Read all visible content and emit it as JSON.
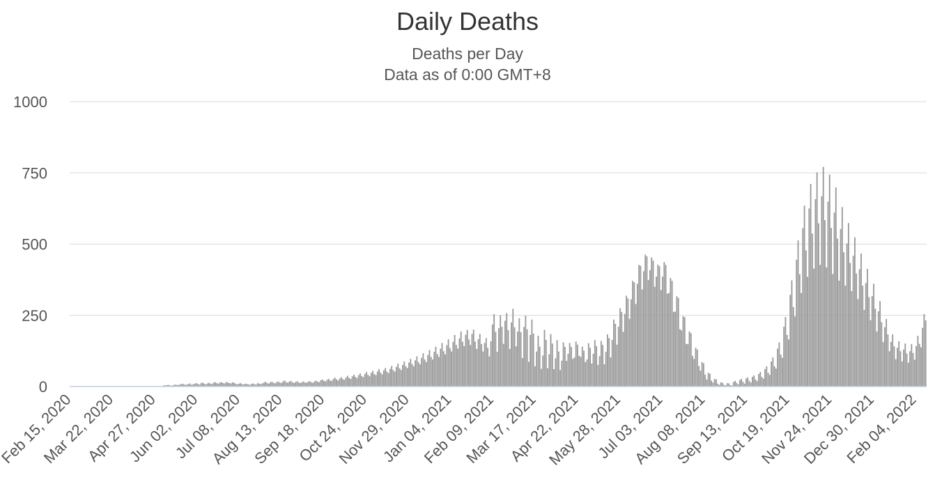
{
  "chart_data": {
    "type": "bar",
    "title": "Daily Deaths",
    "subtitle_lines": [
      "Deaths per Day",
      "Data as of 0:00 GMT+8"
    ],
    "xlabel": "",
    "ylabel": "",
    "ylim": [
      0,
      1000
    ],
    "yticks": [
      0,
      250,
      500,
      750,
      1000
    ],
    "grid": true,
    "legend": "none",
    "bar_color": "#999999",
    "x_range": [
      "2020-02-15",
      "2022-02-14"
    ],
    "xtick_labels": [
      "Feb 15, 2020",
      "Mar 22, 2020",
      "Apr 27, 2020",
      "Jun 02, 2020",
      "Jul 08, 2020",
      "Aug 13, 2020",
      "Sep 18, 2020",
      "Oct 24, 2020",
      "Nov 29, 2020",
      "Jan 04, 2021",
      "Feb 09, 2021",
      "Mar 17, 2021",
      "Apr 22, 2021",
      "May 28, 2021",
      "Jul 03, 2021",
      "Aug 08, 2021",
      "Sep 13, 2021",
      "Oct 19, 2021",
      "Nov 24, 2021",
      "Dec 30, 2021",
      "Feb 04, 2022"
    ],
    "series": [
      {
        "values": [
          0,
          0,
          0,
          0,
          0,
          0,
          0,
          0,
          0,
          0,
          0,
          0,
          0,
          0,
          0,
          0,
          0,
          0,
          0,
          0,
          0,
          0,
          0,
          0,
          0,
          0,
          0,
          0,
          0,
          0,
          0,
          0,
          0,
          0,
          0,
          0,
          0,
          0,
          0,
          0,
          0,
          0,
          0,
          0,
          0,
          0,
          0,
          0,
          0,
          0,
          0,
          0,
          0,
          0,
          0,
          0,
          0,
          0,
          0,
          3,
          5,
          4,
          6,
          5,
          3,
          4,
          6,
          7,
          5,
          6,
          8,
          10,
          8,
          6,
          7,
          9,
          11,
          6,
          8,
          10,
          12,
          9,
          7,
          12,
          14,
          10,
          8,
          11,
          13,
          10,
          9,
          14,
          15,
          12,
          10,
          14,
          15,
          12,
          11,
          16,
          14,
          12,
          11,
          15,
          13,
          10,
          8,
          10,
          12,
          9,
          7,
          10,
          9,
          8,
          6,
          9,
          11,
          8,
          7,
          12,
          10,
          9,
          11,
          14,
          17,
          12,
          10,
          15,
          17,
          13,
          11,
          15,
          18,
          14,
          12,
          18,
          21,
          16,
          13,
          17,
          20,
          15,
          12,
          16,
          19,
          14,
          12,
          15,
          18,
          14,
          13,
          17,
          19,
          15,
          13,
          18,
          21,
          17,
          15,
          22,
          25,
          20,
          18,
          24,
          27,
          21,
          20,
          27,
          31,
          25,
          21,
          28,
          33,
          26,
          24,
          32,
          38,
          30,
          27,
          36,
          42,
          34,
          30,
          40,
          46,
          37,
          33,
          44,
          51,
          41,
          36,
          48,
          55,
          44,
          40,
          53,
          61,
          49,
          43,
          57,
          65,
          52,
          47,
          62,
          72,
          58,
          52,
          69,
          80,
          64,
          58,
          76,
          88,
          71,
          65,
          84,
          97,
          79,
          71,
          92,
          106,
          86,
          78,
          101,
          117,
          95,
          86,
          111,
          128,
          104,
          95,
          122,
          140,
          114,
          104,
          133,
          153,
          124,
          113,
          145,
          166,
          135,
          123,
          157,
          181,
          146,
          133,
          169,
          193,
          157,
          142,
          182,
          199,
          165,
          146,
          185,
          200,
          158,
          132,
          166,
          185,
          149,
          123,
          153,
          170,
          136,
          106,
          159,
          218,
          254,
          192,
          122,
          205,
          250,
          210,
          150,
          231,
          258,
          198,
          132,
          225,
          273,
          208,
          141,
          193,
          240,
          191,
          100,
          209,
          249,
          201,
          87,
          181,
          235,
          186,
          71,
          123,
          178,
          140,
          62,
          109,
          199,
          164,
          64,
          113,
          184,
          151,
          61,
          99,
          163,
          123,
          58,
          91,
          155,
          139,
          90,
          115,
          153,
          139,
          97,
          102,
          158,
          147,
          108,
          104,
          140,
          126,
          86,
          95,
          152,
          136,
          81,
          115,
          163,
          142,
          76,
          107,
          160,
          146,
          78,
          122,
          183,
          170,
          102,
          164,
          235,
          220,
          147,
          210,
          275,
          262,
          192,
          255,
          319,
          309,
          238,
          306,
          371,
          366,
          290,
          361,
          427,
          424,
          341,
          405,
          463,
          457,
          374,
          409,
          453,
          442,
          350,
          386,
          428,
          422,
          339,
          386,
          437,
          427,
          326,
          328,
          381,
          371,
          262,
          263,
          317,
          311,
          201,
          197,
          247,
          243,
          150,
          149,
          193,
          187,
          108,
          97,
          136,
          130,
          72,
          56,
          86,
          82,
          42,
          25,
          48,
          45,
          21,
          14,
          27,
          25,
          10,
          6,
          15,
          13,
          6,
          4,
          12,
          11,
          5,
          4,
          16,
          20,
          13,
          8,
          23,
          27,
          17,
          10,
          28,
          32,
          20,
          14,
          34,
          39,
          25,
          19,
          44,
          51,
          34,
          28,
          61,
          71,
          48,
          41,
          88,
          102,
          71,
          63,
          133,
          155,
          112,
          101,
          210,
          244,
          181,
          165,
          322,
          373,
          279,
          246,
          445,
          513,
          394,
          328,
          556,
          635,
          478,
          385,
          625,
          711,
          537,
          414,
          658,
          752,
          573,
          427,
          668,
          771,
          584,
          418,
          649,
          744,
          557,
          395,
          611,
          699,
          519,
          372,
          553,
          630,
          471,
          354,
          502,
          574,
          434,
          335,
          459,
          524,
          397,
          307,
          412,
          467,
          354,
          269,
          363,
          413,
          314,
          233,
          318,
          361,
          273,
          193,
          264,
          300,
          226,
          156,
          208,
          237,
          183,
          124,
          157,
          183,
          141,
          96,
          136,
          159,
          124,
          88,
          130,
          151,
          116,
          84,
          124,
          149,
          118,
          94,
          142,
          178,
          150,
          138,
          206,
          254,
          232
        ]
      }
    ]
  }
}
